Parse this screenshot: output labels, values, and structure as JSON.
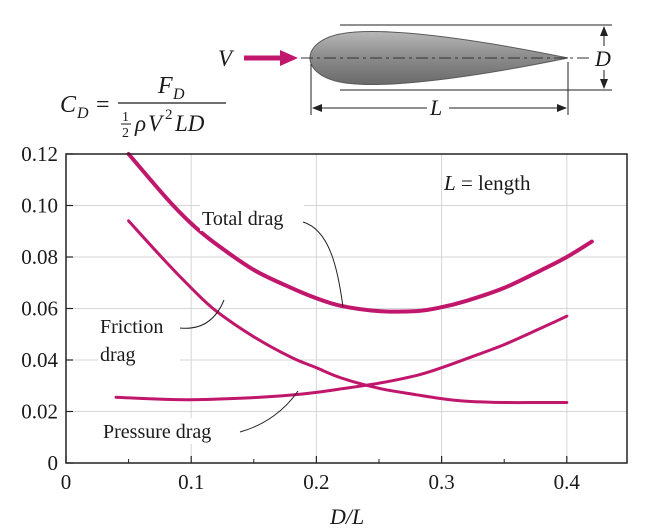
{
  "chart_data": {
    "type": "line",
    "xlabel": "D/L",
    "ylabel": "",
    "xlim": [
      0,
      0.43
    ],
    "ylim": [
      0,
      0.12
    ],
    "xticks": [
      "0",
      "0.1",
      "0.2",
      "0.3",
      "0.4"
    ],
    "xtick_values": [
      0,
      0.1,
      0.2,
      0.3,
      0.4
    ],
    "yticks": [
      "0",
      "0.02",
      "0.04",
      "0.06",
      "0.08",
      "0.10",
      "0.12"
    ],
    "ytick_values": [
      0,
      0.02,
      0.04,
      0.06,
      0.08,
      0.1,
      0.12
    ],
    "grid": true,
    "series": [
      {
        "name": "Total drag",
        "color": "#c0166b",
        "x": [
          0.05,
          0.08,
          0.1,
          0.12,
          0.15,
          0.18,
          0.2,
          0.22,
          0.25,
          0.28,
          0.3,
          0.32,
          0.35,
          0.38,
          0.4,
          0.42
        ],
        "y": [
          0.12,
          0.103,
          0.093,
          0.085,
          0.075,
          0.068,
          0.064,
          0.061,
          0.059,
          0.059,
          0.0605,
          0.063,
          0.068,
          0.075,
          0.08,
          0.086
        ]
      },
      {
        "name": "Friction drag",
        "color": "#c0166b",
        "x": [
          0.05,
          0.08,
          0.1,
          0.12,
          0.15,
          0.18,
          0.2,
          0.22,
          0.25,
          0.28,
          0.3,
          0.32,
          0.35,
          0.38,
          0.4
        ],
        "y": [
          0.094,
          0.078,
          0.068,
          0.059,
          0.049,
          0.041,
          0.037,
          0.033,
          0.029,
          0.0265,
          0.025,
          0.024,
          0.0235,
          0.0235,
          0.0235
        ]
      },
      {
        "name": "Pressure drag",
        "color": "#c0166b",
        "x": [
          0.04,
          0.08,
          0.1,
          0.12,
          0.15,
          0.18,
          0.2,
          0.22,
          0.25,
          0.28,
          0.3,
          0.32,
          0.35,
          0.38,
          0.4
        ],
        "y": [
          0.0255,
          0.0247,
          0.0246,
          0.0248,
          0.0254,
          0.0264,
          0.0274,
          0.0288,
          0.031,
          0.034,
          0.037,
          0.0405,
          0.046,
          0.0525,
          0.057
        ]
      }
    ],
    "annotations": {
      "length_note": {
        "var": "L",
        "text": " = length"
      },
      "total_label": "Total drag",
      "friction_label_1": "Friction",
      "friction_label_2": "drag",
      "pressure_label": "Pressure drag"
    },
    "formula": {
      "lhs": "C",
      "lhs_sub": "D",
      "numerator": "F",
      "numerator_sub": "D",
      "den_one": "1",
      "den_two": "2",
      "den_rho": "ρ",
      "den_v": "V",
      "den_exp": "2",
      "den_rest": "LD"
    },
    "diagram": {
      "velocity": "V",
      "diameter": "D",
      "length": "L"
    }
  }
}
